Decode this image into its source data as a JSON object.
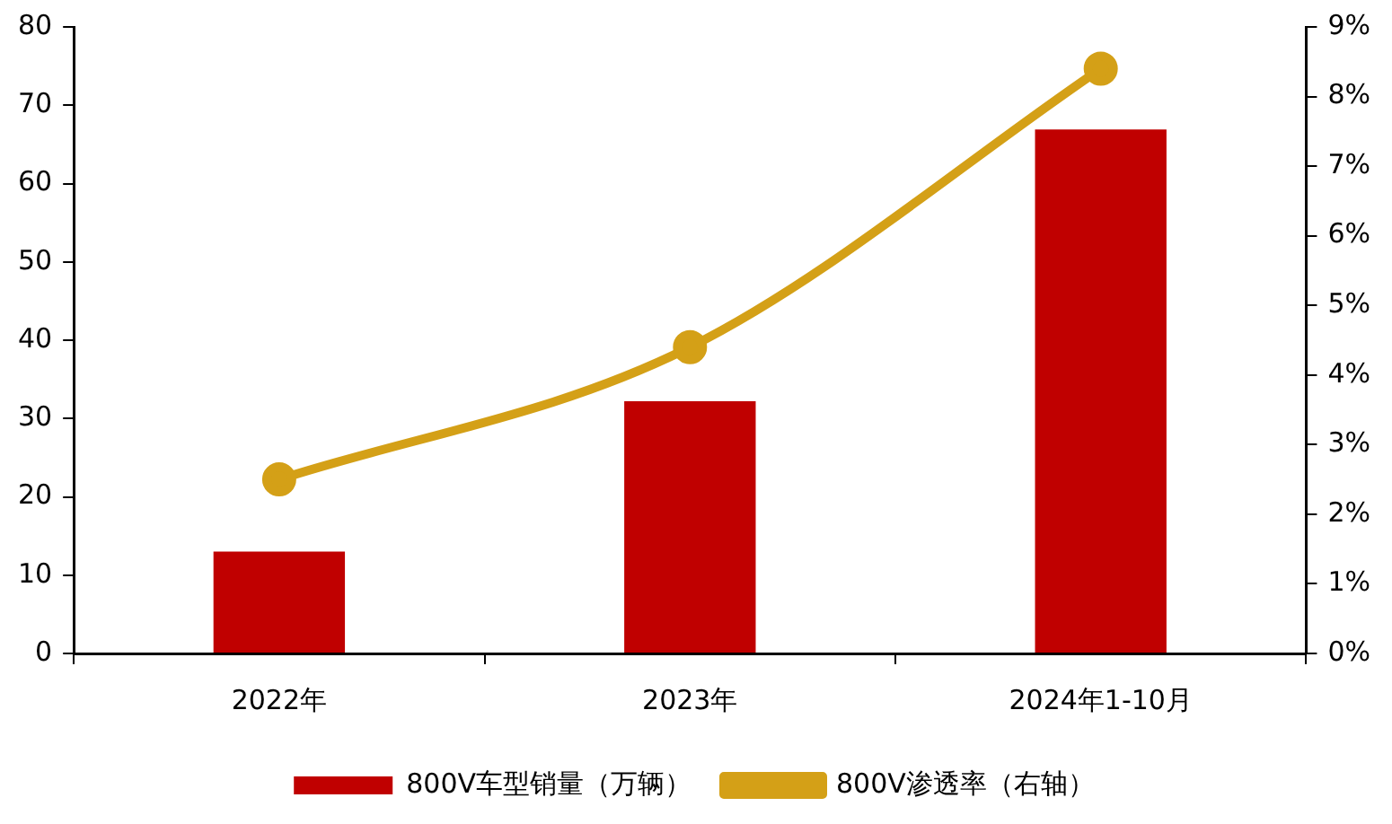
{
  "chart_data": {
    "type": "bar",
    "categories": [
      "2022年",
      "2023年",
      "2024年1-10月"
    ],
    "series": [
      {
        "name": "800V车型销量（万辆）",
        "color": "#c00000",
        "values": [
          13.0,
          32.2,
          66.9
        ]
      },
      {
        "name": "800V渗透率（右轴）",
        "type": "line",
        "axis": "y2",
        "color": "#d4a017",
        "values": [
          2.5,
          4.4,
          8.4
        ]
      }
    ],
    "ylim": [
      0,
      80
    ],
    "yticks": [
      0,
      10,
      20,
      30,
      40,
      50,
      60,
      70,
      80
    ],
    "y2lim": [
      0,
      9
    ],
    "y2ticks": [
      {
        "value": 0,
        "label": "0%"
      },
      {
        "value": 1,
        "label": "1%"
      },
      {
        "value": 2,
        "label": "2%"
      },
      {
        "value": 3,
        "label": "3%"
      },
      {
        "value": 4,
        "label": "4%"
      },
      {
        "value": 5,
        "label": "5%"
      },
      {
        "value": 6,
        "label": "6%"
      },
      {
        "value": 7,
        "label": "7%"
      },
      {
        "value": 8,
        "label": "8%"
      },
      {
        "value": 9,
        "label": "9%"
      }
    ],
    "grid": false,
    "legend": "bottom",
    "marker": "circle"
  }
}
